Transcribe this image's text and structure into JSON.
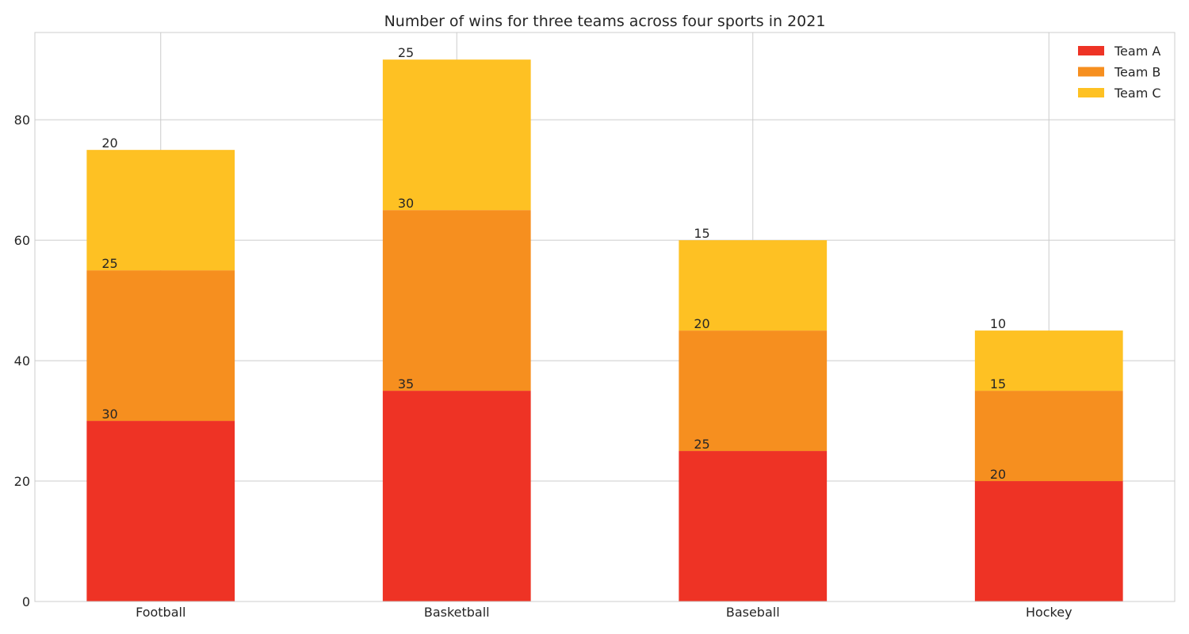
{
  "chart_data": {
    "type": "bar",
    "stacked": true,
    "title": "Number of wins for three teams across four sports in 2021",
    "xlabel": "",
    "ylabel": "",
    "categories": [
      "Football",
      "Basketball",
      "Baseball",
      "Hockey"
    ],
    "series": [
      {
        "name": "Team A",
        "values": [
          30,
          35,
          25,
          20
        ],
        "color": "#ee3325"
      },
      {
        "name": "Team B",
        "values": [
          25,
          30,
          20,
          15
        ],
        "color": "#f68f1f"
      },
      {
        "name": "Team C",
        "values": [
          20,
          25,
          15,
          10
        ],
        "color": "#fec123"
      }
    ],
    "ylim": [
      0,
      94.5
    ],
    "yticks": [
      0,
      20,
      40,
      60,
      80
    ],
    "grid": true,
    "legend_position": "top-right",
    "show_value_labels": true
  }
}
